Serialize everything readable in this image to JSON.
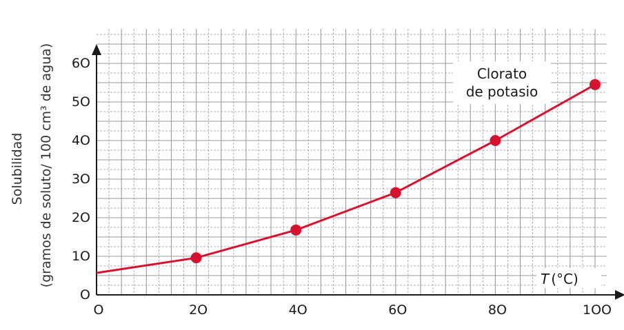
{
  "chart_data": {
    "type": "line",
    "ylabel_line1": "Solubilidad",
    "ylabel_line2": "(gramos de soluto/ 100 cm³ de agua)",
    "xlabel_var": "T",
    "xlabel_unit": "(°C)",
    "xlim": [
      0,
      105
    ],
    "ylim": [
      0,
      65
    ],
    "x_ticks": [
      0,
      20,
      40,
      60,
      80,
      100
    ],
    "x_tick_labels": [
      "O",
      "2O",
      "4O",
      "6O",
      "8O",
      "1OO"
    ],
    "y_ticks": [
      0,
      10,
      20,
      30,
      40,
      50,
      60
    ],
    "y_tick_labels": [
      "O",
      "1O",
      "2O",
      "3O",
      "4O",
      "5O",
      "6O"
    ],
    "grid": true,
    "series": [
      {
        "name": "Clorato de potasio",
        "name_line1": "Clorato",
        "name_line2": "de potasio",
        "line_x": [
          0,
          20,
          40,
          60,
          80,
          100
        ],
        "line_y": [
          5.7,
          9.6,
          16.8,
          26.5,
          40,
          54.5
        ],
        "marker_x": [
          20,
          40,
          60,
          80,
          100
        ],
        "marker_y": [
          9.6,
          16.8,
          26.5,
          40,
          54.5
        ]
      }
    ],
    "colors": {
      "line": "#d8112f",
      "grid": "#9a9a9a",
      "axis": "#1a1a1a"
    }
  }
}
